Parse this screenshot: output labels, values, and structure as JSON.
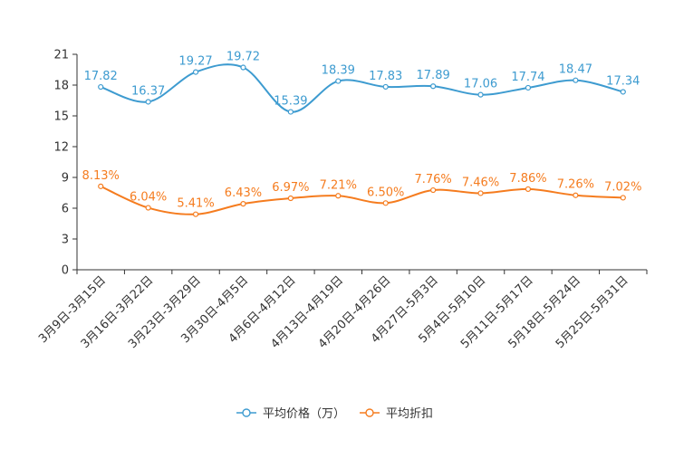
{
  "chart_data": {
    "type": "line",
    "categories": [
      "3月9日-3月15日",
      "3月16日-3月22日",
      "3月23日-3月29日",
      "3月30日-4月5日",
      "4月6日-4月12日",
      "4月13日-4月19日",
      "4月20日-4月26日",
      "4月27日-5月3日",
      "5月4日-5月10日",
      "5月11日-5月17日",
      "5月18日-5月24日",
      "5月25日-5月31日"
    ],
    "series": [
      {
        "name": "平均价格（万）",
        "color": "#3d9bd0",
        "values": [
          17.82,
          16.37,
          19.27,
          19.72,
          15.39,
          18.39,
          17.83,
          17.89,
          17.06,
          17.74,
          18.47,
          17.34
        ],
        "labels": [
          "17.82",
          "16.37",
          "19.27",
          "19.72",
          "15.39",
          "18.39",
          "17.83",
          "17.89",
          "17.06",
          "17.74",
          "18.47",
          "17.34"
        ]
      },
      {
        "name": "平均折扣",
        "color": "#f57c1f",
        "values": [
          8.13,
          6.04,
          5.41,
          6.43,
          6.97,
          7.21,
          6.5,
          7.76,
          7.46,
          7.86,
          7.26,
          7.02
        ],
        "labels": [
          "8.13%",
          "6.04%",
          "5.41%",
          "6.43%",
          "6.97%",
          "7.21%",
          "6.50%",
          "7.76%",
          "7.46%",
          "7.86%",
          "7.26%",
          "7.02%"
        ]
      }
    ],
    "yticks": [
      "0",
      "3",
      "6",
      "9",
      "12",
      "15",
      "18",
      "21"
    ],
    "ylim": [
      0,
      21
    ],
    "legend_position": "bottom-center",
    "grid": false
  }
}
